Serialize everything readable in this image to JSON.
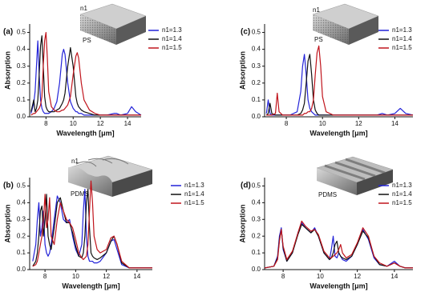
{
  "chart_data": [
    {
      "type": "line",
      "panel_label": "(a)",
      "annotations": [
        "n1",
        "PS"
      ],
      "xlabel": "Wavelength [μm]",
      "ylabel": "Absorption",
      "x": [
        6.9,
        7.1,
        7.2,
        7.3,
        7.4,
        7.5,
        7.6,
        7.7,
        7.8,
        7.9,
        8.0,
        8.1,
        8.2,
        8.4,
        8.6,
        8.8,
        9.0,
        9.2,
        9.3,
        9.4,
        9.6,
        9.8,
        10.0,
        10.2,
        10.3,
        10.4,
        10.6,
        10.8,
        11.2,
        11.6,
        12.0,
        12.5,
        13.0,
        13.2,
        13.5,
        14.0,
        14.3,
        14.6,
        15.0
      ],
      "series": [
        {
          "name": "n1=1.3",
          "color": "#2323d8",
          "values": [
            0.02,
            0.08,
            0.15,
            0.3,
            0.45,
            0.25,
            0.1,
            0.05,
            0.03,
            0.02,
            0.02,
            0.02,
            0.02,
            0.03,
            0.05,
            0.09,
            0.2,
            0.37,
            0.4,
            0.37,
            0.2,
            0.09,
            0.05,
            0.03,
            0.03,
            0.02,
            0.02,
            0.01,
            0.01,
            0.01,
            0.01,
            0.01,
            0.02,
            0.02,
            0.01,
            0.02,
            0.06,
            0.03,
            0.01
          ]
        },
        {
          "name": "n1=1.4",
          "color": "#111111",
          "values": [
            0.03,
            0.1,
            0.03,
            0.05,
            0.1,
            0.25,
            0.42,
            0.48,
            0.3,
            0.12,
            0.06,
            0.04,
            0.03,
            0.03,
            0.03,
            0.04,
            0.05,
            0.08,
            0.1,
            0.14,
            0.3,
            0.41,
            0.3,
            0.12,
            0.08,
            0.06,
            0.04,
            0.03,
            0.02,
            0.01,
            0.01,
            0.01,
            0.01,
            0.01,
            0.01,
            0.01,
            0.01,
            0.01,
            0.01
          ]
        },
        {
          "name": "n1=1.5",
          "color": "#c0141c",
          "values": [
            0.01,
            0.02,
            0.02,
            0.03,
            0.04,
            0.05,
            0.07,
            0.12,
            0.3,
            0.45,
            0.5,
            0.35,
            0.15,
            0.06,
            0.04,
            0.03,
            0.03,
            0.04,
            0.04,
            0.05,
            0.07,
            0.12,
            0.25,
            0.36,
            0.38,
            0.35,
            0.2,
            0.1,
            0.04,
            0.02,
            0.01,
            0.01,
            0.01,
            0.01,
            0.01,
            0.01,
            0.01,
            0.01,
            0.01
          ]
        }
      ],
      "xlim": [
        6.8,
        15
      ],
      "xticks": [
        8,
        10,
        12,
        14
      ],
      "ylim": [
        0,
        0.55
      ],
      "yticks": [
        {
          "value": 0,
          "label": "0.0"
        },
        0.1,
        0.2,
        0.3,
        0.4,
        0.5
      ],
      "legend": "right"
    },
    {
      "type": "line",
      "panel_label": "(b)",
      "annotations": [
        "n1",
        "PDMS"
      ],
      "xlabel": "Wavelength [μm]",
      "ylabel": "Absorption",
      "x": [
        7.2,
        7.4,
        7.5,
        7.6,
        7.7,
        7.8,
        7.9,
        8.0,
        8.1,
        8.2,
        8.3,
        8.4,
        8.6,
        8.8,
        9.0,
        9.2,
        9.4,
        9.6,
        9.8,
        10.0,
        10.2,
        10.4,
        10.5,
        10.6,
        10.7,
        10.8,
        10.9,
        11.0,
        11.1,
        11.2,
        11.4,
        11.6,
        12.0,
        12.3,
        12.5,
        12.7,
        13.0,
        13.5,
        14.0,
        14.5,
        15.0
      ],
      "series": [
        {
          "name": "n1=1.3",
          "color": "#2323d8",
          "values": [
            0.05,
            0.15,
            0.3,
            0.4,
            0.2,
            0.25,
            0.35,
            0.15,
            0.1,
            0.08,
            0.1,
            0.15,
            0.3,
            0.44,
            0.4,
            0.3,
            0.28,
            0.3,
            0.2,
            0.12,
            0.08,
            0.15,
            0.35,
            0.48,
            0.2,
            0.08,
            0.05,
            0.05,
            0.05,
            0.04,
            0.04,
            0.05,
            0.1,
            0.17,
            0.18,
            0.12,
            0.03,
            0.01,
            0.01,
            0.01,
            0.01
          ]
        },
        {
          "name": "n1=1.4",
          "color": "#111111",
          "values": [
            0.02,
            0.05,
            0.1,
            0.2,
            0.35,
            0.38,
            0.2,
            0.3,
            0.45,
            0.2,
            0.15,
            0.12,
            0.25,
            0.4,
            0.43,
            0.35,
            0.28,
            0.28,
            0.22,
            0.14,
            0.08,
            0.07,
            0.1,
            0.2,
            0.4,
            0.48,
            0.25,
            0.1,
            0.08,
            0.07,
            0.06,
            0.07,
            0.1,
            0.17,
            0.2,
            0.15,
            0.04,
            0.01,
            0.01,
            0.01,
            0.01
          ]
        },
        {
          "name": "n1=1.5",
          "color": "#c0141c",
          "values": [
            0.02,
            0.03,
            0.05,
            0.1,
            0.15,
            0.2,
            0.3,
            0.45,
            0.25,
            0.3,
            0.43,
            0.2,
            0.15,
            0.3,
            0.4,
            0.35,
            0.3,
            0.28,
            0.25,
            0.18,
            0.1,
            0.07,
            0.06,
            0.07,
            0.08,
            0.15,
            0.35,
            0.53,
            0.4,
            0.2,
            0.12,
            0.1,
            0.12,
            0.19,
            0.2,
            0.15,
            0.05,
            0.01,
            0.01,
            0.01,
            0.01
          ]
        }
      ],
      "xlim": [
        7,
        15
      ],
      "xticks": [
        8,
        10,
        12,
        14
      ],
      "ylim": [
        0,
        0.55
      ],
      "yticks": [
        {
          "value": 0,
          "label": "0.0"
        },
        0.1,
        0.2,
        0.3,
        0.4,
        0.5
      ],
      "legend": "right"
    },
    {
      "type": "line",
      "panel_label": "(c)",
      "annotations": [
        "n1",
        "PS"
      ],
      "xlabel": "Wavelength [μm]",
      "ylabel": "Absorption",
      "x": [
        6.9,
        7.0,
        7.1,
        7.2,
        7.4,
        7.5,
        7.6,
        7.8,
        8.2,
        8.6,
        8.8,
        8.9,
        9.0,
        9.1,
        9.2,
        9.3,
        9.4,
        9.5,
        9.6,
        9.7,
        9.8,
        9.9,
        10.0,
        10.2,
        10.6,
        11.0,
        12.0,
        13.0,
        13.3,
        13.6,
        14.0,
        14.3,
        14.6,
        15.0
      ],
      "series": [
        {
          "name": "n1=1.3",
          "color": "#2323d8",
          "values": [
            0.02,
            0.1,
            0.02,
            0.01,
            0.01,
            0.01,
            0.01,
            0.01,
            0.01,
            0.03,
            0.15,
            0.3,
            0.37,
            0.25,
            0.1,
            0.05,
            0.03,
            0.02,
            0.01,
            0.01,
            0.01,
            0.01,
            0.01,
            0.01,
            0.01,
            0.01,
            0.01,
            0.01,
            0.02,
            0.01,
            0.02,
            0.05,
            0.02,
            0.01
          ]
        },
        {
          "name": "n1=1.4",
          "color": "#111111",
          "values": [
            0.01,
            0.02,
            0.08,
            0.02,
            0.01,
            0.01,
            0.01,
            0.01,
            0.01,
            0.01,
            0.02,
            0.04,
            0.08,
            0.2,
            0.33,
            0.37,
            0.25,
            0.1,
            0.04,
            0.02,
            0.01,
            0.01,
            0.01,
            0.01,
            0.01,
            0.01,
            0.01,
            0.01,
            0.01,
            0.01,
            0.01,
            0.01,
            0.01,
            0.01
          ]
        },
        {
          "name": "n1=1.5",
          "color": "#c0141c",
          "values": [
            0.01,
            0.01,
            0.01,
            0.01,
            0.02,
            0.14,
            0.03,
            0.01,
            0.01,
            0.01,
            0.01,
            0.01,
            0.02,
            0.02,
            0.03,
            0.03,
            0.05,
            0.1,
            0.25,
            0.38,
            0.42,
            0.3,
            0.12,
            0.03,
            0.01,
            0.01,
            0.01,
            0.01,
            0.01,
            0.01,
            0.01,
            0.01,
            0.01,
            0.01
          ]
        }
      ],
      "xlim": [
        6.8,
        15
      ],
      "xticks": [
        8,
        10,
        12,
        14
      ],
      "ylim": [
        0,
        0.55
      ],
      "yticks": [
        {
          "value": 0,
          "label": "0.0"
        },
        0.1,
        0.2,
        0.3,
        0.4,
        0.5
      ],
      "legend": "upper right"
    },
    {
      "type": "line",
      "panel_label": "(d)",
      "annotations": [
        "PDMS"
      ],
      "xlabel": "Wavelength [μm]",
      "ylabel": "Absorption",
      "x": [
        7.0,
        7.5,
        7.7,
        7.8,
        7.9,
        8.0,
        8.2,
        8.5,
        8.8,
        9.0,
        9.2,
        9.5,
        9.7,
        9.9,
        10.2,
        10.5,
        10.6,
        10.7,
        10.8,
        10.9,
        11.0,
        11.1,
        11.2,
        11.4,
        11.7,
        12.0,
        12.3,
        12.6,
        12.9,
        13.2,
        13.6,
        14.0,
        14.3,
        14.6,
        15.0
      ],
      "series": [
        {
          "name": "n1=1.3",
          "color": "#2323d8",
          "values": [
            0.01,
            0.02,
            0.08,
            0.2,
            0.25,
            0.12,
            0.05,
            0.1,
            0.22,
            0.28,
            0.25,
            0.22,
            0.25,
            0.2,
            0.1,
            0.06,
            0.12,
            0.2,
            0.08,
            0.07,
            0.1,
            0.08,
            0.06,
            0.05,
            0.08,
            0.15,
            0.24,
            0.18,
            0.07,
            0.03,
            0.02,
            0.05,
            0.02,
            0.01,
            0.01
          ]
        },
        {
          "name": "n1=1.4",
          "color": "#111111",
          "values": [
            0.01,
            0.02,
            0.07,
            0.18,
            0.24,
            0.13,
            0.05,
            0.1,
            0.21,
            0.27,
            0.25,
            0.22,
            0.24,
            0.2,
            0.1,
            0.06,
            0.07,
            0.1,
            0.15,
            0.17,
            0.1,
            0.08,
            0.07,
            0.06,
            0.08,
            0.15,
            0.23,
            0.19,
            0.08,
            0.03,
            0.02,
            0.04,
            0.02,
            0.01,
            0.01
          ]
        },
        {
          "name": "n1=1.5",
          "color": "#c0141c",
          "values": [
            0.01,
            0.02,
            0.06,
            0.17,
            0.24,
            0.14,
            0.06,
            0.11,
            0.22,
            0.29,
            0.26,
            0.23,
            0.24,
            0.21,
            0.11,
            0.07,
            0.07,
            0.08,
            0.09,
            0.1,
            0.12,
            0.15,
            0.1,
            0.07,
            0.09,
            0.16,
            0.25,
            0.2,
            0.08,
            0.04,
            0.02,
            0.04,
            0.02,
            0.01,
            0.01
          ]
        }
      ],
      "xlim": [
        7,
        15
      ],
      "xticks": [
        8,
        10,
        12,
        14
      ],
      "ylim": [
        0,
        0.55
      ],
      "yticks": [
        {
          "value": 0,
          "label": "0.0"
        },
        0.1,
        0.2,
        0.3,
        0.4,
        0.5
      ],
      "legend": "upper right"
    }
  ]
}
